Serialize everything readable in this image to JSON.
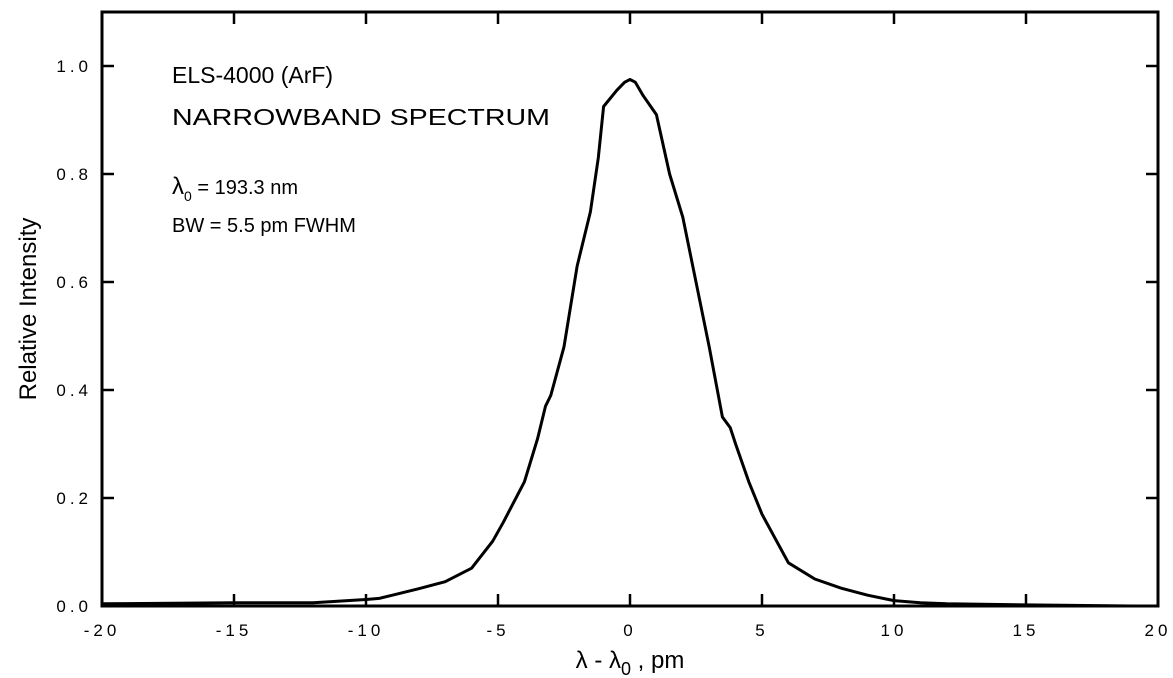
{
  "chart_data": {
    "type": "line",
    "title": "",
    "xlabel": {
      "base": "λ - λ",
      "subscript": "0",
      "suffix": " ,  pm"
    },
    "ylabel": "Relative  Intensity",
    "xlim": [
      -20,
      20
    ],
    "ylim": [
      0,
      1.1
    ],
    "x_ticks": [
      -20,
      -15,
      -10,
      -5,
      0,
      5,
      10,
      15,
      20
    ],
    "x_tick_labels": [
      "-20",
      "-15",
      "-10",
      "-5",
      "0",
      "5",
      "10",
      "15",
      "20"
    ],
    "y_ticks": [
      0,
      0.2,
      0.4,
      0.6,
      0.8,
      1.0
    ],
    "y_tick_labels": [
      "0.0",
      "0.2",
      "0.4",
      "0.6",
      "0.8",
      "1.0"
    ],
    "grid": false,
    "legend": "none",
    "line_color": "#000000",
    "annotations": {
      "line1": "ELS-4000  (ArF)",
      "line2": "NARROWBAND SPECTRUM",
      "line3": {
        "base": "λ",
        "subscript": "0",
        "rest": " = 193.3  nm"
      },
      "line4": "BW = 5.5 pm FWHM"
    },
    "series": [
      {
        "x": [
          -20,
          -15,
          -12,
          -10,
          -9.5,
          -9,
          -8,
          -7,
          -6,
          -5.2,
          -4.8,
          -4,
          -3.8,
          -3.5,
          -3.2,
          -3.0,
          -2.5,
          -2,
          -1.5,
          -1.2,
          -1.0,
          -0.5,
          -0.2,
          0,
          0.2,
          0.5,
          1.0,
          1.5,
          2,
          2.5,
          3,
          3.5,
          3.8,
          4,
          4.5,
          5,
          6,
          7,
          8,
          9,
          10,
          11,
          12,
          15,
          19,
          20
        ],
        "y": [
          0.004,
          0.006,
          0.006,
          0.012,
          0.014,
          0.02,
          0.032,
          0.045,
          0.07,
          0.12,
          0.155,
          0.23,
          0.262,
          0.31,
          0.37,
          0.39,
          0.48,
          0.63,
          0.73,
          0.83,
          0.925,
          0.955,
          0.97,
          0.975,
          0.97,
          0.945,
          0.91,
          0.8,
          0.72,
          0.6,
          0.48,
          0.35,
          0.33,
          0.3,
          0.23,
          0.17,
          0.08,
          0.05,
          0.033,
          0.02,
          0.01,
          0.006,
          0.004,
          0.002,
          0.0,
          0.0
        ]
      }
    ]
  }
}
